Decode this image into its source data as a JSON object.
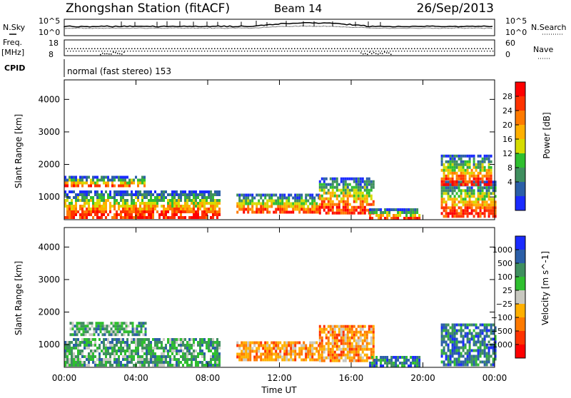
{
  "header": {
    "station": "Zhongshan Station (fitACF)",
    "beam": "Beam 14",
    "date": "26/Sep/2013"
  },
  "noise_panel": {
    "left_label": "N.Sky",
    "right_label": "N.Search",
    "ticks": [
      "10^5",
      "10^0"
    ]
  },
  "freq_panel": {
    "left_label_line1": "Freq.",
    "left_label_line2": "[MHz]",
    "left_ticks": [
      "18",
      "8"
    ],
    "right_label": "Nave",
    "right_ticks": [
      "60",
      "0"
    ]
  },
  "cpid": {
    "label": "CPID",
    "text": "normal (fast stereo) 153"
  },
  "chart_data": [
    {
      "type": "heatmap",
      "panel": "power",
      "ylabel": "Slant Range [km]",
      "ylim": [
        300,
        4600
      ],
      "yticks": [
        1000,
        2000,
        3000,
        4000
      ],
      "x_hours": [
        0,
        24
      ],
      "colorbar": {
        "label": "Power [dB]",
        "ticks": [
          "28",
          "24",
          "20",
          "16",
          "12",
          "8",
          "4"
        ],
        "colors": [
          "#ff0000",
          "#ff3300",
          "#ff7a00",
          "#ffb000",
          "#d6dc00",
          "#2fbf2f",
          "#3f8f5f",
          "#2b5fa8",
          "#1a2bff"
        ]
      },
      "echo_regions": [
        {
          "t0": 0.0,
          "t1": 8.6,
          "r0": 400,
          "r1": 1200
        },
        {
          "t0": 0.0,
          "t1": 4.5,
          "r0": 1300,
          "r1": 1650
        },
        {
          "t0": 9.6,
          "t1": 14.2,
          "r0": 500,
          "r1": 1100
        },
        {
          "t0": 14.2,
          "t1": 17.2,
          "r0": 500,
          "r1": 1600
        },
        {
          "t0": 17.0,
          "t1": 19.8,
          "r0": 300,
          "r1": 650
        },
        {
          "t0": 21.0,
          "t1": 24.0,
          "r0": 400,
          "r1": 1500
        },
        {
          "t0": 21.0,
          "t1": 23.8,
          "r0": 1400,
          "r1": 2300
        }
      ]
    },
    {
      "type": "heatmap",
      "panel": "velocity",
      "ylabel": "Slant Range [km]",
      "ylim": [
        300,
        4600
      ],
      "yticks": [
        1000,
        2000,
        3000,
        4000
      ],
      "x_hours": [
        0,
        24
      ],
      "colorbar": {
        "label": "Velocity [m s^-1]",
        "ticks": [
          "1000",
          "500",
          "100",
          "25",
          "−25",
          "−100",
          "−500",
          "−1000"
        ],
        "colors": [
          "#1a2bff",
          "#2b5fa8",
          "#3f8f5f",
          "#2fbf2f",
          "#c8c8c0",
          "#ffb000",
          "#ff7a00",
          "#ff3300",
          "#ff0000"
        ]
      },
      "echo_regions": [
        {
          "t0": 0.0,
          "t1": 8.6,
          "r0": 400,
          "r1": 1200
        },
        {
          "t0": 0.3,
          "t1": 4.5,
          "r0": 1300,
          "r1": 1700
        },
        {
          "t0": 9.6,
          "t1": 14.2,
          "r0": 500,
          "r1": 1100
        },
        {
          "t0": 14.2,
          "t1": 17.2,
          "r0": 500,
          "r1": 1600
        },
        {
          "t0": 17.0,
          "t1": 19.8,
          "r0": 300,
          "r1": 650
        },
        {
          "t0": 21.0,
          "t1": 24.0,
          "r0": 400,
          "r1": 1650
        }
      ]
    }
  ],
  "x_axis": {
    "ticks": [
      "00:00",
      "04:00",
      "08:00",
      "12:00",
      "16:00",
      "20:00",
      "00:00"
    ],
    "label": "Time UT"
  }
}
